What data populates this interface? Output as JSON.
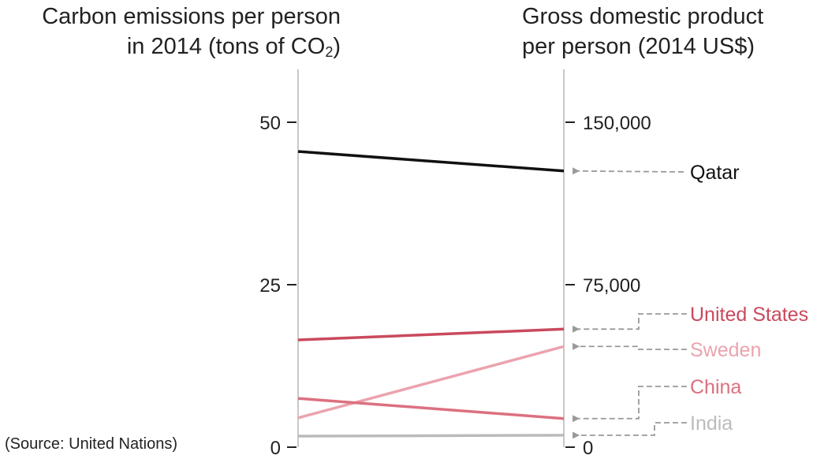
{
  "titles": {
    "left_main": "Carbon emissions per person",
    "left_line2_pre": "in 2014 (tons of CO",
    "left_sub": "2",
    "left_line2_post": ")",
    "right_line1": "Gross domestic product",
    "right_line2": "per person (2014 US$)"
  },
  "source_note": "(Source: United Nations)",
  "chart_data": {
    "type": "line",
    "subtype": "slope",
    "left_axis": {
      "label": "Carbon emissions per person in 2014 (tons of CO2)",
      "range": [
        0,
        57
      ],
      "ticks": [
        0,
        25,
        50
      ],
      "tick_labels": [
        "0",
        "25",
        "50"
      ]
    },
    "right_axis": {
      "label": "Gross domestic product per person (2014 US$)",
      "range": [
        0,
        171000
      ],
      "ticks": [
        0,
        75000,
        150000
      ],
      "tick_labels": [
        "0",
        "75,000",
        "150,000"
      ]
    },
    "series": [
      {
        "name": "Qatar",
        "co2": 45.5,
        "gdp": 127500,
        "color": "#111111"
      },
      {
        "name": "United States",
        "co2": 16.5,
        "gdp": 54500,
        "color": "#c94a5c"
      },
      {
        "name": "Sweden",
        "co2": 4.5,
        "gdp": 46500,
        "color": "#eba3ae"
      },
      {
        "name": "China",
        "co2": 7.5,
        "gdp": 13200,
        "color": "#dc7080"
      },
      {
        "name": "India",
        "co2": 1.7,
        "gdp": 5500,
        "color": "#bbbbbb"
      }
    ],
    "grid": false,
    "legend": "right, direct labels with dashed arrows"
  }
}
